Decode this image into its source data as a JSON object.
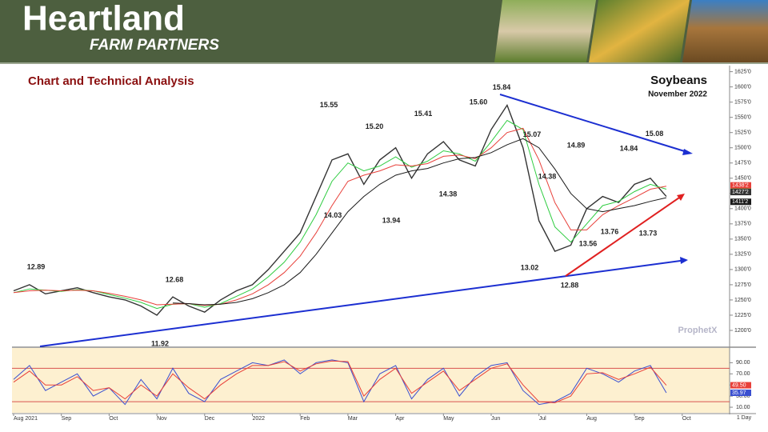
{
  "header": {
    "brand": "Heartland",
    "tagline": "FARM PARTNERS"
  },
  "chart_data": {
    "type": "line",
    "title": "Chart and Technical Analysis",
    "commodity": "Soybeans",
    "contract": "November 2022",
    "watermark": "ProphetX",
    "interval": "1 Day",
    "categories": [
      "Aug 2021",
      null,
      null,
      "Sep",
      null,
      null,
      "Oct",
      null,
      null,
      "Nov",
      null,
      null,
      "Dec",
      null,
      null,
      "2022",
      null,
      null,
      "Feb",
      null,
      null,
      "Mar",
      null,
      null,
      "Apr",
      null,
      null,
      "May",
      null,
      null,
      "Jun",
      null,
      null,
      "Jul",
      null,
      null,
      "Aug",
      null,
      null,
      "Sep",
      null,
      null,
      "Oct"
    ],
    "series": [
      {
        "color": "#333333",
        "values": [
          1265,
          1275,
          1260,
          1265,
          1270,
          1262,
          1255,
          1250,
          1240,
          1225,
          1255,
          1240,
          1230,
          1250,
          1265,
          1275,
          1300,
          1330,
          1360,
          1420,
          1480,
          1490,
          1440,
          1480,
          1500,
          1450,
          1490,
          1510,
          1480,
          1470,
          1530,
          1570,
          1500,
          1380,
          1330,
          1340,
          1400,
          1420,
          1410,
          1440,
          1450,
          1420,
          null
        ]
      },
      {
        "color": "#2ecc40",
        "values": [
          1262,
          1268,
          1266,
          1264,
          1267,
          1265,
          1259,
          1253,
          1246,
          1236,
          1243,
          1244,
          1238,
          1244,
          1256,
          1268,
          1288,
          1312,
          1345,
          1390,
          1445,
          1475,
          1462,
          1470,
          1485,
          1468,
          1478,
          1495,
          1490,
          1478,
          1510,
          1545,
          1530,
          1440,
          1370,
          1345,
          1375,
          1405,
          1412,
          1428,
          1440,
          1432,
          null
        ]
      },
      {
        "color": "#e8403a",
        "values": [
          1262,
          1265,
          1266,
          1265,
          1266,
          1265,
          1261,
          1256,
          1250,
          1242,
          1243,
          1244,
          1241,
          1243,
          1250,
          1260,
          1275,
          1295,
          1322,
          1360,
          1405,
          1445,
          1455,
          1462,
          1472,
          1470,
          1474,
          1486,
          1488,
          1482,
          1500,
          1525,
          1532,
          1480,
          1410,
          1365,
          1365,
          1390,
          1405,
          1418,
          1432,
          1437,
          null
        ]
      },
      {
        "color": "#1a1a1a",
        "values": [
          null,
          null,
          null,
          null,
          null,
          null,
          null,
          null,
          null,
          null,
          1245,
          1244,
          1242,
          1243,
          1246,
          1252,
          1262,
          1275,
          1295,
          1325,
          1360,
          1395,
          1420,
          1440,
          1455,
          1462,
          1466,
          1475,
          1482,
          1484,
          1492,
          1505,
          1515,
          1500,
          1465,
          1425,
          1400,
          1395,
          1400,
          1405,
          1412,
          1418,
          null
        ]
      }
    ],
    "ylim": [
      1175,
      1635
    ],
    "yticks": [
      {
        "value": 1200,
        "label": "1200'0"
      },
      {
        "value": 1225,
        "label": "1225'0"
      },
      {
        "value": 1250,
        "label": "1250'0"
      },
      {
        "value": 1275,
        "label": "1275'0"
      },
      {
        "value": 1300,
        "label": "1300'0"
      },
      {
        "value": 1325,
        "label": "1325'0"
      },
      {
        "value": 1350,
        "label": "1350'0"
      },
      {
        "value": 1375,
        "label": "1375'0"
      },
      {
        "value": 1400,
        "label": "1400'0"
      },
      {
        "value": 1425,
        "label": "1425'0"
      },
      {
        "value": 1450,
        "label": "1450'0"
      },
      {
        "value": 1475,
        "label": "1475'0"
      },
      {
        "value": 1500,
        "label": "1500'0"
      },
      {
        "value": 1525,
        "label": "1525'0"
      },
      {
        "value": 1550,
        "label": "1550'0"
      },
      {
        "value": 1575,
        "label": "1575'0"
      },
      {
        "value": 1600,
        "label": "1600'0"
      },
      {
        "value": 1625,
        "label": "1625'0"
      }
    ],
    "annotations": [
      {
        "value": 1289,
        "label": "12.89"
      },
      {
        "value": 1192,
        "label": "11.92"
      },
      {
        "value": 1268,
        "label": "12.68"
      },
      {
        "value": 1403,
        "label": "14.03"
      },
      {
        "value": 1555,
        "label": "15.55"
      },
      {
        "value": 1520,
        "label": "15.20"
      },
      {
        "value": 1394,
        "label": "13.94"
      },
      {
        "value": 1541,
        "label": "15.41"
      },
      {
        "value": 1438,
        "label": "14.38"
      },
      {
        "value": 1560,
        "label": "15.60"
      },
      {
        "value": 1584,
        "label": "15.84"
      },
      {
        "value": 1507,
        "label": "15.07"
      },
      {
        "value": 1438,
        "label": "14.38"
      },
      {
        "value": 1302,
        "label": "13.02"
      },
      {
        "value": 1288,
        "label": "12.88"
      },
      {
        "value": 1489,
        "label": "14.89"
      },
      {
        "value": 1356,
        "label": "13.56"
      },
      {
        "value": 1376,
        "label": "13.76"
      },
      {
        "value": 1484,
        "label": "14.84"
      },
      {
        "value": 1373,
        "label": "13.73"
      },
      {
        "value": 1508,
        "label": "15.08"
      }
    ],
    "last_values": [
      {
        "value": 1437.25,
        "label": "1437'2",
        "color": "#2ecc40"
      },
      {
        "value": 1438.25,
        "label": "1438'2",
        "color": "#e8403a"
      },
      {
        "value": 1427.25,
        "label": "1427'2",
        "color": "#333333"
      },
      {
        "value": 1411.25,
        "label": "1411'2",
        "color": "#1a1a1a"
      }
    ],
    "indicator": {
      "series": [
        {
          "color": "#3a4fd0",
          "values": [
            60,
            85,
            40,
            55,
            70,
            30,
            45,
            15,
            60,
            25,
            80,
            35,
            20,
            60,
            75,
            90,
            85,
            95,
            70,
            90,
            95,
            90,
            20,
            70,
            85,
            25,
            60,
            80,
            30,
            65,
            85,
            90,
            40,
            15,
            20,
            35,
            80,
            70,
            55,
            75,
            85,
            36,
            null
          ]
        },
        {
          "color": "#e8403a",
          "values": [
            55,
            75,
            50,
            50,
            65,
            40,
            45,
            25,
            50,
            30,
            70,
            45,
            25,
            50,
            70,
            85,
            85,
            92,
            75,
            88,
            93,
            92,
            30,
            60,
            80,
            35,
            55,
            75,
            40,
            60,
            80,
            88,
            50,
            20,
            18,
            30,
            70,
            72,
            60,
            70,
            82,
            49.5,
            null
          ]
        }
      ],
      "ylim": [
        0,
        115
      ],
      "yticks": [
        {
          "value": 10,
          "label": "10.00"
        },
        {
          "value": 30,
          "label": "30.00"
        },
        {
          "value": 50,
          "label": "50.00"
        },
        {
          "value": 70,
          "label": "70.00"
        },
        {
          "value": 90,
          "label": "90.00"
        }
      ],
      "levels": [
        20,
        80
      ],
      "level_color": "#d9534f",
      "last_values": [
        {
          "value": 49.5,
          "label": "49.50",
          "color": "#e8403a"
        },
        {
          "value": 35.97,
          "label": "35.97",
          "color": "#3a4fd0"
        }
      ]
    }
  }
}
